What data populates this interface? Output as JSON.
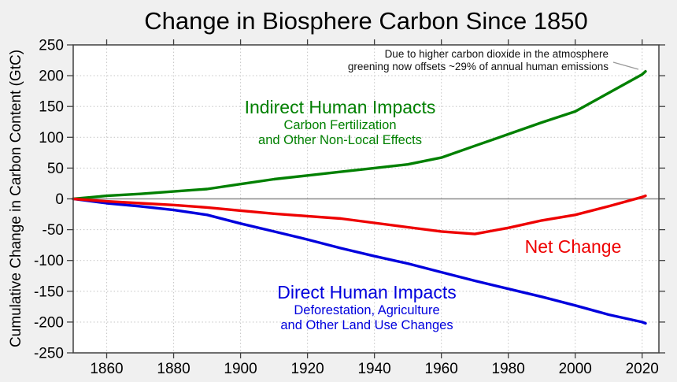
{
  "title": "Change in Biosphere Carbon Since 1850",
  "y_axis_label": "Cumulative Change in Carbon Content (GtC)",
  "annotation": {
    "line1": "Due to higher carbon dioxide in the atmosphere",
    "line2": "greening now offsets ~29% of annual human emissions"
  },
  "labels": {
    "indirect": {
      "title": "Indirect Human Impacts",
      "sub1": "Carbon Fertilization",
      "sub2": "and Other Non-Local Effects",
      "color": "#008000"
    },
    "direct": {
      "title": "Direct Human Impacts",
      "sub1": "Deforestation, Agriculture",
      "sub2": "and Other Land Use Changes",
      "color": "#0000dd"
    },
    "net": {
      "title": "Net Change",
      "color": "#ee0000"
    }
  },
  "colors": {
    "background": "#f0f0f0",
    "plot_background": "#ffffff",
    "axis": "#3f3f3f",
    "grid": "#c9c9c9",
    "zero_line": "#8a8a8a",
    "leader_line": "#999999",
    "green": "#008000",
    "blue": "#0000dd",
    "red": "#ee0000"
  },
  "chart_data": {
    "type": "line",
    "title": "Change in Biosphere Carbon Since 1850",
    "xlabel": "",
    "ylabel": "Cumulative Change in Carbon Content (GtC)",
    "xlim": [
      1850,
      2025
    ],
    "ylim": [
      -250,
      250
    ],
    "x_ticks": [
      1860,
      1880,
      1900,
      1920,
      1940,
      1960,
      1980,
      2000,
      2020
    ],
    "y_ticks": [
      -250,
      -200,
      -150,
      -100,
      -50,
      0,
      50,
      100,
      150,
      200,
      250
    ],
    "grid": true,
    "legend_position": "inline-labels",
    "x": [
      1850,
      1860,
      1870,
      1880,
      1890,
      1900,
      1910,
      1920,
      1930,
      1940,
      1950,
      1960,
      1970,
      1980,
      1990,
      2000,
      2010,
      2020,
      2021
    ],
    "series": [
      {
        "id": "indirect",
        "name": "Indirect Human Impacts (Carbon Fertilization and Other Non-Local Effects)",
        "color": "#008000",
        "values": [
          0,
          5,
          8,
          12,
          16,
          24,
          32,
          38,
          44,
          50,
          56,
          67,
          86,
          105,
          124,
          142,
          172,
          202,
          207
        ]
      },
      {
        "id": "direct",
        "name": "Direct Human Impacts (Deforestation, Agriculture and Other Land Use Changes)",
        "color": "#0000dd",
        "values": [
          0,
          -7,
          -12,
          -18,
          -26,
          -40,
          -53,
          -66,
          -80,
          -93,
          -105,
          -119,
          -133,
          -146,
          -159,
          -173,
          -188,
          -200,
          -202
        ]
      },
      {
        "id": "net",
        "name": "Net Change",
        "color": "#ee0000",
        "values": [
          0,
          -4,
          -7,
          -10,
          -14,
          -19,
          -24,
          -28,
          -32,
          -39,
          -46,
          -53,
          -57,
          -47,
          -35,
          -26,
          -12,
          3,
          5
        ]
      }
    ]
  }
}
